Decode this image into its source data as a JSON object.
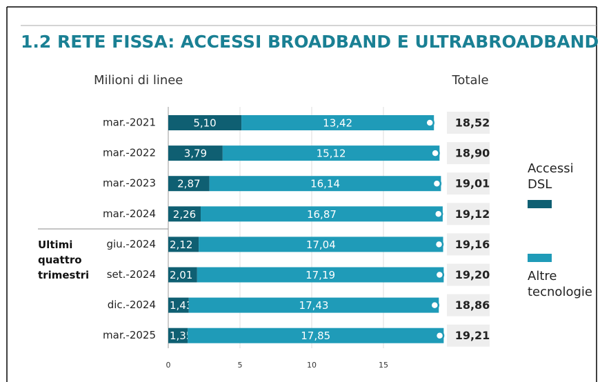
{
  "chart_data": {
    "type": "bar",
    "orientation": "horizontal",
    "stacked": true,
    "title": "1.2 RETE FISSA: ACCESSI BROADBAND E ULTRABROADBAND",
    "axis_label": "Milioni di linee",
    "total_header": "Totale",
    "annotation": "Ultimi quattro trimestri",
    "categories": [
      "mar.-2021",
      "mar.-2022",
      "mar.-2023",
      "mar.-2024",
      "giu.-2024",
      "set.-2024",
      "dic.-2024",
      "mar.-2025"
    ],
    "series": [
      {
        "name": "Accessi DSL",
        "color": "#0f5f72",
        "values": [
          5.1,
          3.79,
          2.87,
          2.26,
          2.12,
          2.01,
          1.43,
          1.35
        ],
        "value_labels": [
          "5,10",
          "3,79",
          "2,87",
          "2,26",
          "2,12",
          "2,01",
          "1,43",
          "1,35"
        ]
      },
      {
        "name": "Altre tecnologie",
        "color": "#1f9bb8",
        "values": [
          13.42,
          15.12,
          16.14,
          16.87,
          17.04,
          17.19,
          17.43,
          17.85
        ],
        "value_labels": [
          "13,42",
          "15,12",
          "16,14",
          "16,87",
          "17,04",
          "17,19",
          "17,43",
          "17,85"
        ]
      }
    ],
    "totals": [
      18.52,
      18.9,
      19.01,
      19.12,
      19.16,
      19.2,
      18.86,
      19.21
    ],
    "total_labels": [
      "18,52",
      "18,90",
      "19,01",
      "19,12",
      "19,16",
      "19,20",
      "18,86",
      "19,21"
    ],
    "xlim": [
      0,
      20
    ],
    "xticks": [
      0,
      5,
      10,
      15
    ],
    "grid": true
  }
}
